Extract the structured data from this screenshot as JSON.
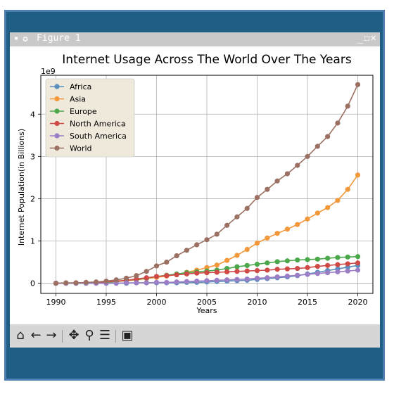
{
  "window": {
    "title": "Figure 1",
    "buttons": "_☐✕"
  },
  "toolbar": {
    "items": [
      {
        "name": "home-icon",
        "glyph": "⌂"
      },
      {
        "name": "back-icon",
        "glyph": "←"
      },
      {
        "name": "forward-icon",
        "glyph": "→"
      },
      {
        "name": "pan-icon",
        "glyph": "✥"
      },
      {
        "name": "zoom-icon",
        "glyph": "🔍"
      },
      {
        "name": "configure-icon",
        "glyph": "☰"
      },
      {
        "name": "save-icon",
        "glyph": "💾"
      }
    ]
  },
  "chart_data": {
    "type": "line",
    "title": "Internet Usage Across The World Over The Years",
    "xlabel": "Years",
    "ylabel": "Internet Population(in Billions)",
    "y_offset_label": "1e9",
    "xlim": [
      1988.5,
      2021.5
    ],
    "ylim": [
      -0.24,
      4.92
    ],
    "xticks": [
      1990,
      1995,
      2000,
      2005,
      2010,
      2015,
      2020
    ],
    "yticks": [
      0,
      1,
      2,
      3,
      4
    ],
    "grid": true,
    "legend_position": "upper-left",
    "x": [
      1990,
      1991,
      1992,
      1993,
      1994,
      1995,
      1996,
      1997,
      1998,
      1999,
      2000,
      2001,
      2002,
      2003,
      2004,
      2005,
      2006,
      2007,
      2008,
      2009,
      2010,
      2011,
      2012,
      2013,
      2014,
      2015,
      2016,
      2017,
      2018,
      2019,
      2020
    ],
    "series": [
      {
        "name": "Africa",
        "color": "#5b8fbf",
        "values": [
          0,
          0,
          0,
          0,
          0,
          0,
          0,
          0,
          0.01,
          0.01,
          0.01,
          0.01,
          0.01,
          0.02,
          0.02,
          0.03,
          0.04,
          0.05,
          0.06,
          0.07,
          0.09,
          0.11,
          0.13,
          0.15,
          0.18,
          0.22,
          0.26,
          0.3,
          0.34,
          0.38,
          0.42
        ]
      },
      {
        "name": "Asia",
        "color": "#f2973a",
        "values": [
          0,
          0,
          0,
          0.01,
          0.01,
          0.02,
          0.04,
          0.06,
          0.08,
          0.11,
          0.14,
          0.17,
          0.21,
          0.26,
          0.31,
          0.37,
          0.43,
          0.54,
          0.66,
          0.8,
          0.95,
          1.07,
          1.18,
          1.28,
          1.39,
          1.52,
          1.66,
          1.79,
          1.96,
          2.22,
          2.56
        ]
      },
      {
        "name": "Europe",
        "color": "#4aa84a",
        "values": [
          0,
          0,
          0,
          0,
          0.01,
          0.02,
          0.04,
          0.07,
          0.09,
          0.12,
          0.16,
          0.19,
          0.22,
          0.25,
          0.27,
          0.29,
          0.31,
          0.35,
          0.39,
          0.42,
          0.45,
          0.48,
          0.51,
          0.53,
          0.55,
          0.56,
          0.57,
          0.59,
          0.61,
          0.62,
          0.63
        ]
      },
      {
        "name": "North America",
        "color": "#cf4a47",
        "values": [
          0,
          0,
          0.01,
          0.01,
          0.02,
          0.03,
          0.05,
          0.07,
          0.1,
          0.13,
          0.16,
          0.18,
          0.2,
          0.22,
          0.24,
          0.25,
          0.26,
          0.27,
          0.28,
          0.29,
          0.3,
          0.31,
          0.33,
          0.34,
          0.35,
          0.37,
          0.4,
          0.42,
          0.44,
          0.46,
          0.48
        ]
      },
      {
        "name": "South America",
        "color": "#9b7dc6",
        "values": [
          0,
          0,
          0,
          0,
          0,
          0,
          0,
          0.01,
          0.01,
          0.01,
          0.02,
          0.02,
          0.03,
          0.04,
          0.05,
          0.06,
          0.07,
          0.08,
          0.09,
          0.1,
          0.12,
          0.13,
          0.15,
          0.17,
          0.19,
          0.21,
          0.23,
          0.25,
          0.27,
          0.29,
          0.31
        ]
      },
      {
        "name": "World",
        "color": "#9b7062",
        "values": [
          0,
          0.01,
          0.01,
          0.02,
          0.03,
          0.05,
          0.08,
          0.12,
          0.18,
          0.28,
          0.41,
          0.5,
          0.65,
          0.78,
          0.91,
          1.03,
          1.16,
          1.37,
          1.57,
          1.77,
          2.03,
          2.22,
          2.42,
          2.59,
          2.79,
          3.0,
          3.24,
          3.47,
          3.79,
          4.19,
          4.7
        ]
      }
    ]
  }
}
